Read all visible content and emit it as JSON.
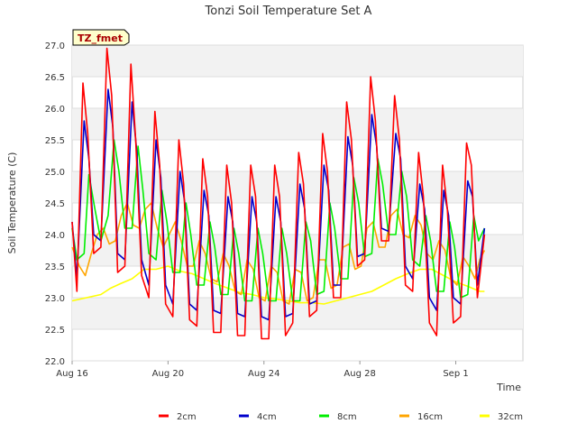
{
  "chart_data": {
    "type": "line",
    "title": "Tonzi Soil Temperature Set A",
    "badge": "TZ_fmet",
    "xlabel": "Time",
    "ylabel": "Soil Temperature (C)",
    "xlim": [
      "2023-08-16",
      "2023-09-03"
    ],
    "ylim": [
      22.0,
      27.0
    ],
    "x_ticks": [
      {
        "date": "2023-08-16",
        "label": "Aug 16"
      },
      {
        "date": "2023-08-20",
        "label": "Aug 20"
      },
      {
        "date": "2023-08-24",
        "label": "Aug 24"
      },
      {
        "date": "2023-08-28",
        "label": "Aug 28"
      },
      {
        "date": "2023-09-01",
        "label": "Sep 1"
      }
    ],
    "y_ticks": [
      "22.0",
      "22.5",
      "23.0",
      "23.5",
      "24.0",
      "24.5",
      "25.0",
      "25.5",
      "26.0",
      "26.5",
      "27.0"
    ],
    "grid": true,
    "legend_position": "bottom",
    "start_date": "2023-08-16",
    "series": [
      {
        "name": "2cm",
        "color": "#ff0000",
        "x": [
          0.0,
          0.2,
          0.45,
          0.65,
          0.9,
          1.2,
          1.45,
          1.65,
          1.9,
          2.2,
          2.45,
          2.65,
          2.9,
          3.2,
          3.45,
          3.65,
          3.9,
          4.2,
          4.45,
          4.65,
          4.9,
          5.2,
          5.45,
          5.65,
          5.9,
          6.2,
          6.45,
          6.65,
          6.9,
          7.2,
          7.45,
          7.65,
          7.9,
          8.2,
          8.45,
          8.65,
          8.9,
          9.2,
          9.45,
          9.65,
          9.9,
          10.2,
          10.45,
          10.65,
          10.9,
          11.2,
          11.45,
          11.65,
          11.9,
          12.2,
          12.45,
          12.65,
          12.9,
          13.2,
          13.45,
          13.65,
          13.9,
          14.2,
          14.45,
          14.65,
          14.9,
          15.2,
          15.45,
          15.65,
          15.9,
          16.2,
          16.45,
          16.65,
          16.9,
          17.2
        ],
        "values": [
          24.2,
          23.1,
          26.4,
          25.6,
          23.7,
          23.8,
          26.95,
          26.2,
          23.4,
          23.5,
          26.7,
          25.5,
          23.35,
          23.0,
          25.95,
          25.1,
          22.9,
          22.7,
          25.5,
          24.8,
          22.65,
          22.55,
          25.2,
          24.6,
          22.45,
          22.45,
          25.1,
          24.5,
          22.4,
          22.4,
          25.1,
          24.6,
          22.35,
          22.35,
          25.1,
          24.6,
          22.4,
          22.6,
          25.3,
          24.8,
          22.7,
          22.8,
          25.6,
          25.0,
          23.0,
          23.0,
          26.1,
          25.5,
          23.5,
          23.6,
          26.5,
          25.8,
          23.9,
          23.9,
          26.2,
          25.5,
          23.2,
          23.1,
          25.3,
          24.6,
          22.6,
          22.4,
          25.1,
          24.4,
          22.6,
          22.7,
          25.45,
          25.1,
          23.0,
          24.0
        ]
      },
      {
        "name": "4cm",
        "color": "#0000cc",
        "x": [
          0.0,
          0.2,
          0.5,
          0.7,
          0.9,
          1.2,
          1.5,
          1.7,
          1.9,
          2.2,
          2.5,
          2.7,
          2.9,
          3.2,
          3.5,
          3.7,
          3.9,
          4.2,
          4.5,
          4.7,
          4.9,
          5.2,
          5.5,
          5.7,
          5.9,
          6.2,
          6.5,
          6.7,
          6.9,
          7.2,
          7.5,
          7.7,
          7.9,
          8.2,
          8.5,
          8.7,
          8.9,
          9.2,
          9.5,
          9.7,
          9.9,
          10.2,
          10.5,
          10.7,
          10.9,
          11.2,
          11.5,
          11.7,
          11.9,
          12.2,
          12.5,
          12.7,
          12.9,
          13.2,
          13.5,
          13.7,
          13.9,
          14.2,
          14.5,
          14.7,
          14.9,
          15.2,
          15.5,
          15.7,
          15.9,
          16.2,
          16.5,
          16.7,
          16.9,
          17.2
        ],
        "values": [
          24.2,
          23.3,
          25.8,
          25.2,
          24.0,
          23.9,
          26.3,
          25.7,
          23.7,
          23.6,
          26.1,
          25.3,
          23.6,
          23.2,
          25.5,
          24.9,
          23.2,
          22.9,
          25.0,
          24.5,
          22.9,
          22.8,
          24.7,
          24.3,
          22.8,
          22.75,
          24.6,
          24.2,
          22.75,
          22.7,
          24.6,
          24.2,
          22.7,
          22.65,
          24.6,
          24.2,
          22.7,
          22.75,
          24.8,
          24.4,
          22.9,
          22.95,
          25.1,
          24.7,
          23.2,
          23.2,
          25.55,
          25.1,
          23.65,
          23.7,
          25.9,
          25.4,
          24.1,
          24.05,
          25.6,
          25.2,
          23.5,
          23.3,
          24.8,
          24.4,
          23.0,
          22.8,
          24.7,
          24.3,
          23.0,
          22.9,
          24.85,
          24.6,
          23.2,
          24.1
        ]
      },
      {
        "name": "8cm",
        "color": "#00ee00",
        "x": [
          0.0,
          0.2,
          0.5,
          0.7,
          0.95,
          1.2,
          1.5,
          1.75,
          1.95,
          2.2,
          2.5,
          2.75,
          2.95,
          3.2,
          3.5,
          3.75,
          3.95,
          4.2,
          4.5,
          4.75,
          4.95,
          5.2,
          5.5,
          5.75,
          5.95,
          6.2,
          6.5,
          6.75,
          6.95,
          7.2,
          7.5,
          7.75,
          7.95,
          8.2,
          8.5,
          8.75,
          8.95,
          9.2,
          9.5,
          9.75,
          9.95,
          10.2,
          10.5,
          10.75,
          10.95,
          11.2,
          11.5,
          11.75,
          11.95,
          12.2,
          12.5,
          12.75,
          12.95,
          13.2,
          13.5,
          13.75,
          13.95,
          14.2,
          14.5,
          14.75,
          14.95,
          15.2,
          15.5,
          15.75,
          15.95,
          16.2,
          16.5,
          16.75,
          16.95,
          17.2
        ],
        "values": [
          24.1,
          23.6,
          23.7,
          24.95,
          24.4,
          23.9,
          24.3,
          25.5,
          25.0,
          24.1,
          24.1,
          25.4,
          24.7,
          23.7,
          23.6,
          24.7,
          24.2,
          23.4,
          23.4,
          24.5,
          24.0,
          23.2,
          23.2,
          24.2,
          23.8,
          23.05,
          23.05,
          24.1,
          23.7,
          22.95,
          22.95,
          24.1,
          23.7,
          22.95,
          22.95,
          24.1,
          23.7,
          22.95,
          22.95,
          24.2,
          23.9,
          23.05,
          23.1,
          24.5,
          24.1,
          23.3,
          23.3,
          24.9,
          24.5,
          23.65,
          23.7,
          25.2,
          24.8,
          24.0,
          24.0,
          25.0,
          24.6,
          23.6,
          23.5,
          24.3,
          23.9,
          23.1,
          23.1,
          24.2,
          23.8,
          23.0,
          23.05,
          24.3,
          23.9,
          24.1
        ]
      },
      {
        "name": "16cm",
        "color": "#ffa500",
        "x": [
          0.0,
          0.3,
          0.55,
          0.8,
          1.05,
          1.3,
          1.55,
          1.8,
          2.05,
          2.3,
          2.55,
          2.8,
          3.05,
          3.3,
          3.55,
          3.8,
          4.05,
          4.3,
          4.55,
          4.8,
          5.05,
          5.3,
          5.55,
          5.8,
          6.05,
          6.3,
          6.55,
          6.8,
          7.05,
          7.3,
          7.55,
          7.8,
          8.05,
          8.3,
          8.55,
          8.8,
          9.05,
          9.3,
          9.55,
          9.8,
          10.05,
          10.3,
          10.55,
          10.8,
          11.05,
          11.3,
          11.55,
          11.8,
          12.05,
          12.3,
          12.55,
          12.8,
          13.05,
          13.3,
          13.55,
          13.8,
          14.05,
          14.3,
          14.55,
          14.8,
          15.05,
          15.3,
          15.55,
          15.8,
          16.05,
          16.3,
          16.55,
          16.8,
          17.0,
          17.2
        ],
        "values": [
          23.8,
          23.5,
          23.35,
          23.7,
          24.0,
          24.1,
          23.85,
          23.9,
          24.3,
          24.5,
          24.15,
          24.1,
          24.4,
          24.5,
          24.1,
          23.8,
          24.0,
          24.2,
          23.9,
          23.5,
          23.5,
          23.9,
          23.7,
          23.3,
          23.25,
          23.7,
          23.5,
          23.1,
          23.05,
          23.6,
          23.45,
          23.0,
          22.95,
          23.5,
          23.4,
          22.95,
          22.9,
          23.45,
          23.4,
          22.95,
          23.0,
          23.6,
          23.6,
          23.15,
          23.2,
          23.8,
          23.85,
          23.45,
          23.5,
          24.1,
          24.2,
          23.8,
          23.8,
          24.3,
          24.4,
          24.0,
          23.95,
          24.3,
          24.15,
          23.7,
          23.6,
          23.9,
          23.75,
          23.3,
          23.2,
          23.65,
          23.5,
          23.3,
          23.6,
          23.75
        ]
      },
      {
        "name": "32cm",
        "color": "#ffff00",
        "x": [
          0.0,
          0.6,
          1.2,
          1.6,
          2.0,
          2.5,
          3.0,
          3.5,
          4.0,
          4.5,
          5.0,
          5.5,
          6.0,
          6.5,
          7.0,
          7.5,
          8.0,
          8.5,
          9.0,
          9.5,
          10.0,
          10.5,
          11.0,
          11.5,
          12.0,
          12.5,
          13.0,
          13.5,
          14.0,
          14.5,
          15.0,
          15.5,
          16.0,
          16.5,
          17.0,
          17.2
        ],
        "values": [
          22.95,
          23.0,
          23.05,
          23.15,
          23.22,
          23.3,
          23.45,
          23.45,
          23.5,
          23.42,
          23.38,
          23.3,
          23.22,
          23.15,
          23.08,
          23.05,
          23.0,
          22.98,
          22.95,
          22.92,
          22.92,
          22.9,
          22.95,
          23.0,
          23.05,
          23.1,
          23.2,
          23.3,
          23.38,
          23.45,
          23.45,
          23.35,
          23.25,
          23.18,
          23.1,
          23.1
        ]
      }
    ]
  }
}
